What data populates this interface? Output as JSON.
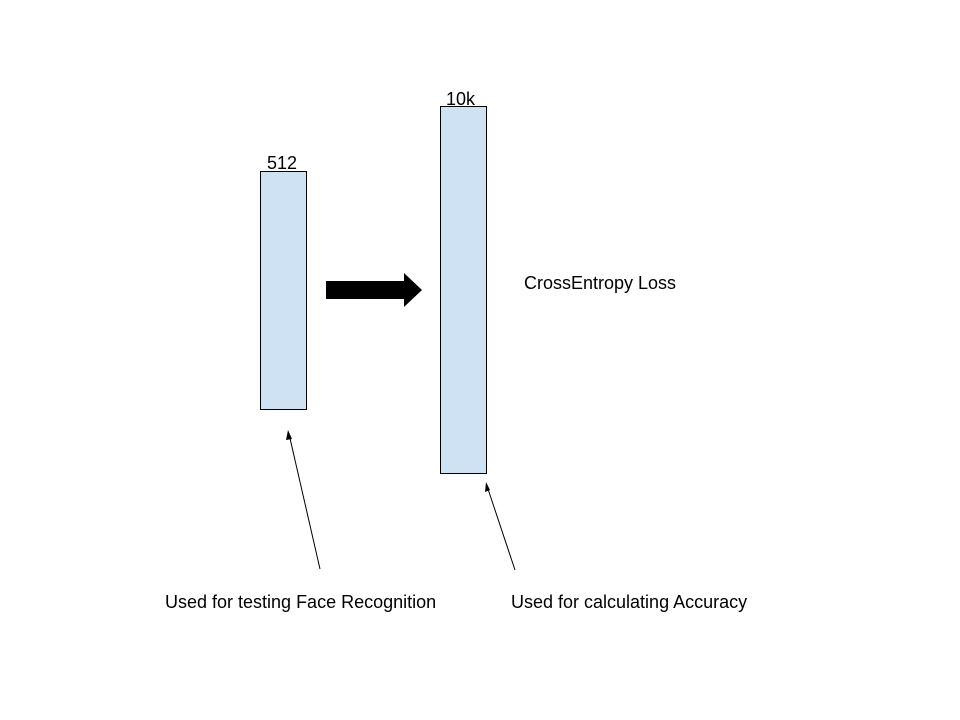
{
  "diagram": {
    "blocks": [
      {
        "id": "embedding",
        "dimension_label": "512"
      },
      {
        "id": "classifier",
        "dimension_label": "10k"
      }
    ],
    "loss_label": "CrossEntropy Loss",
    "captions": {
      "embedding": "Used for testing Face Recognition",
      "classifier": "Used for calculating Accuracy"
    },
    "colors": {
      "block_fill": "#cfe2f3",
      "block_border": "#000000",
      "arrow": "#000000",
      "background": "#ffffff"
    },
    "icons": {
      "transition": "right-arrow-icon",
      "pointer": "thin-arrow-icon"
    }
  }
}
